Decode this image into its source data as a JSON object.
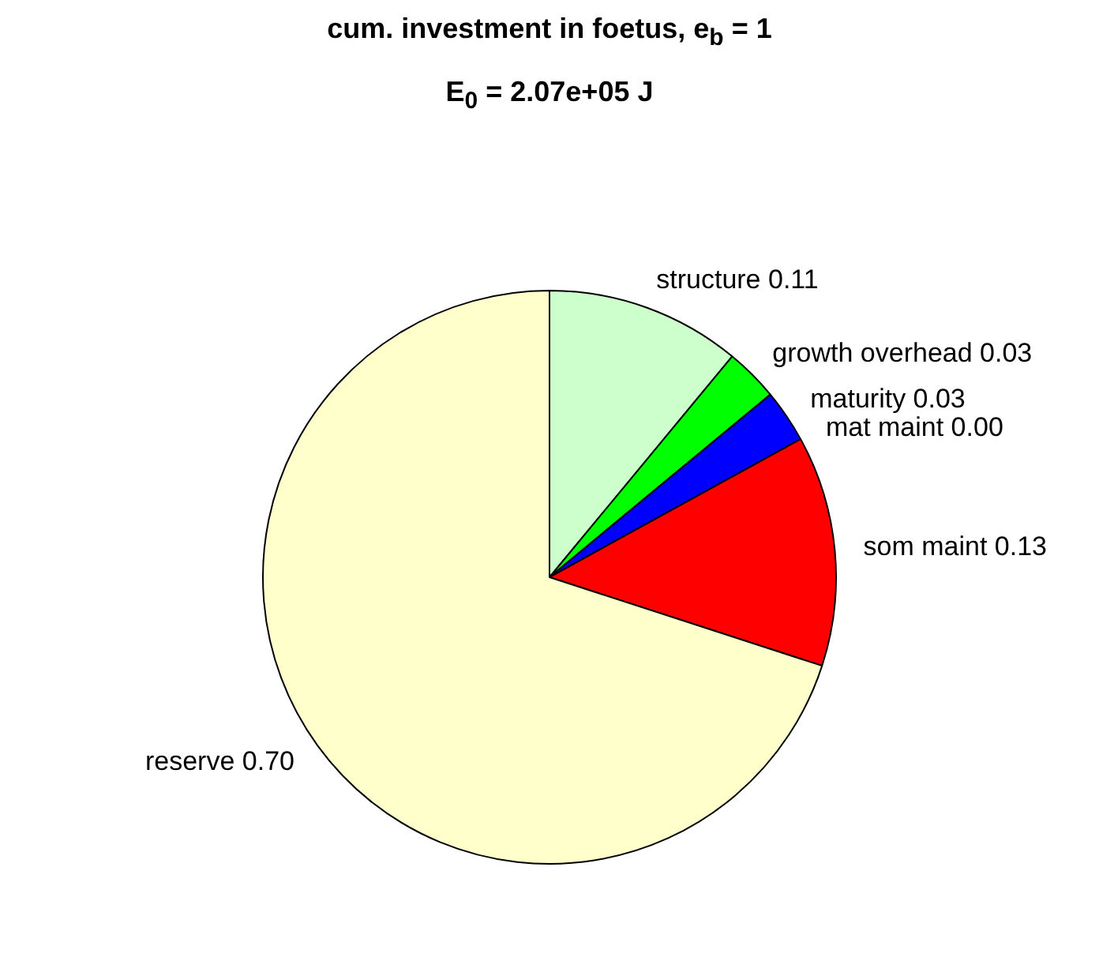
{
  "chart_data": {
    "type": "pie",
    "title": "cum. investment in foetus, e$_{b}$ = 1",
    "subtitle": "E$_{0}$ = 2.07e+05 J",
    "categories": [
      "structure",
      "growth overhead",
      "maturity",
      "mat maint",
      "som maint",
      "reserve"
    ],
    "values": [
      0.11,
      0.03,
      0.03,
      0.0,
      0.13,
      0.7
    ],
    "value_labels": [
      "0.11",
      "0.03",
      "0.03",
      "0.00",
      "0.13",
      "0.70"
    ],
    "colors": [
      "#ccffcc",
      "#00ff00",
      "#0000ff",
      "#ff00ff",
      "#ff0000",
      "#ffffcc"
    ]
  }
}
